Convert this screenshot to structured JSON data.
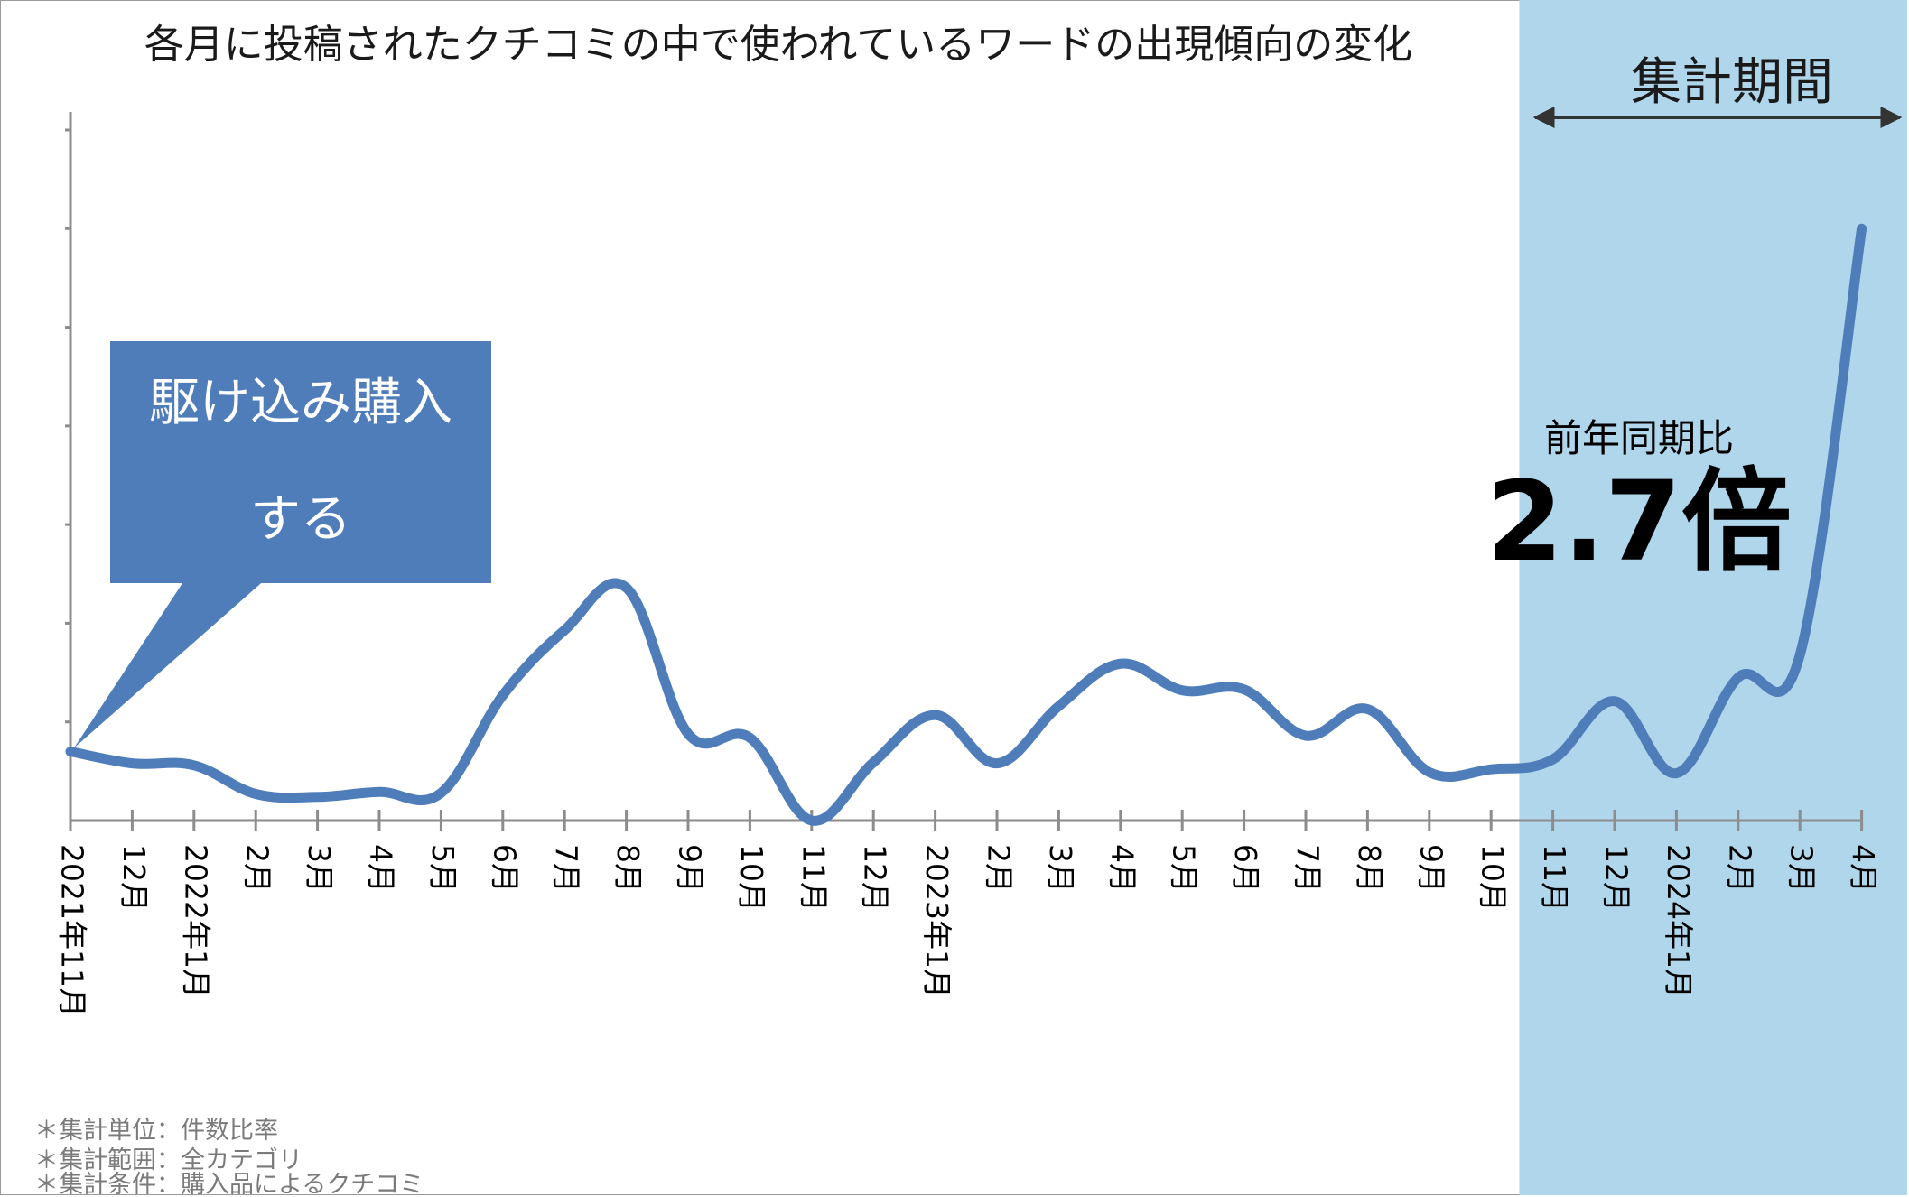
{
  "chart_data": {
    "type": "line",
    "title": "各月に投稿されたクチコミの中で使われているワードの出現傾向の変化",
    "categories": [
      "2021年11月",
      "12月",
      "2022年1月",
      "2月",
      "3月",
      "4月",
      "5月",
      "6月",
      "7月",
      "8月",
      "9月",
      "10月",
      "11月",
      "12月",
      "2023年1月",
      "2月",
      "3月",
      "4月",
      "5月",
      "6月",
      "7月",
      "8月",
      "9月",
      "10月",
      "11月",
      "12月",
      "2024年1月",
      "2月",
      "3月",
      "4月"
    ],
    "series": [
      {
        "values": [
          0.7,
          0.58,
          0.56,
          0.27,
          0.24,
          0.29,
          0.28,
          1.27,
          1.93,
          2.36,
          0.88,
          0.84,
          0.0,
          0.59,
          1.07,
          0.58,
          1.16,
          1.59,
          1.32,
          1.33,
          0.86,
          1.13,
          0.49,
          0.52,
          0.62,
          1.21,
          0.48,
          1.45,
          1.68,
          6.0
        ]
      }
    ],
    "ylim": [
      0,
      7
    ],
    "y_grid_ticks": 7,
    "grid": false,
    "line_color": "#4f7dba",
    "highlight_color": "#b0d6ec",
    "highlight_range": {
      "from_after": "10月",
      "to": "4月"
    }
  },
  "annotations": {
    "period_label": "集計期間",
    "yoy_label": "前年同期比",
    "yoy_value": "2.7倍",
    "callout_line1": "駆け込み購入",
    "callout_line2": "する",
    "callout_color": "#4f7dba"
  },
  "notes": [
    "＊集計単位：件数比率",
    "＊集計範囲：全カテゴリ",
    "＊集計条件：購入品によるクチコミ"
  ]
}
